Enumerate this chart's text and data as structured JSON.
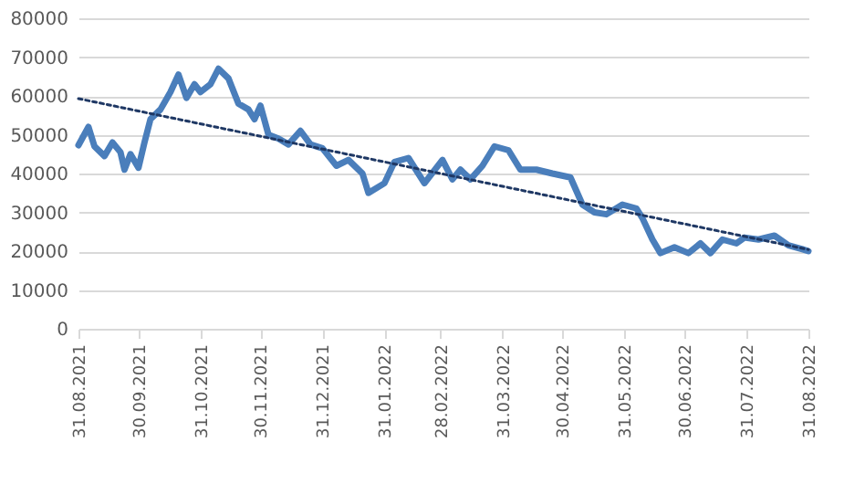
{
  "chart_data": {
    "type": "line",
    "x": [
      "2021-08-31",
      "2021-09-05",
      "2021-09-08",
      "2021-09-13",
      "2021-09-17",
      "2021-09-21",
      "2021-09-23",
      "2021-09-26",
      "2021-09-30",
      "2021-10-03",
      "2021-10-06",
      "2021-10-11",
      "2021-10-16",
      "2021-10-20",
      "2021-10-24",
      "2021-10-28",
      "2021-10-31",
      "2021-11-05",
      "2021-11-09",
      "2021-11-14",
      "2021-11-19",
      "2021-11-24",
      "2021-11-27",
      "2021-11-30",
      "2021-12-04",
      "2021-12-09",
      "2021-12-14",
      "2021-12-20",
      "2021-12-25",
      "2021-12-31",
      "2022-01-07",
      "2022-01-13",
      "2022-01-20",
      "2022-01-23",
      "2022-01-31",
      "2022-02-05",
      "2022-02-12",
      "2022-02-20",
      "2022-03-01",
      "2022-03-06",
      "2022-03-10",
      "2022-03-15",
      "2022-03-21",
      "2022-03-27",
      "2022-04-03",
      "2022-04-09",
      "2022-04-17",
      "2022-04-25",
      "2022-05-04",
      "2022-05-10",
      "2022-05-16",
      "2022-05-22",
      "2022-05-30",
      "2022-06-06",
      "2022-06-09",
      "2022-06-14",
      "2022-06-18",
      "2022-06-25",
      "2022-07-02",
      "2022-07-08",
      "2022-07-13",
      "2022-07-19",
      "2022-07-26",
      "2022-07-30",
      "2022-08-06",
      "2022-08-14",
      "2022-08-21",
      "2022-08-28",
      "2022-08-31"
    ],
    "series": [
      {
        "color": "#4a7ebb",
        "values": [
          47300,
          52000,
          47000,
          44500,
          48000,
          45500,
          41000,
          45000,
          41500,
          48000,
          54000,
          56500,
          61000,
          65500,
          59500,
          63000,
          61000,
          63000,
          67000,
          64500,
          58000,
          56500,
          54000,
          57500,
          50000,
          49000,
          47500,
          51000,
          47500,
          46500,
          42000,
          43500,
          40000,
          35000,
          37500,
          43000,
          44000,
          37500,
          43500,
          38500,
          41000,
          38500,
          42000,
          47000,
          46000,
          41000,
          41000,
          40000,
          39000,
          32000,
          30000,
          29500,
          32000,
          31000,
          28500,
          23000,
          19500,
          21000,
          19500,
          22000,
          19500,
          23000,
          22000,
          23500,
          23000,
          24000,
          21500,
          20500,
          20000
        ]
      },
      {
        "type": "line",
        "color": "#1f3864",
        "line_style": "dotted",
        "x": [
          "2021-08-31",
          "2022-08-31"
        ],
        "values": [
          59300,
          20400
        ]
      }
    ],
    "xlim": [
      "2021-08-31",
      "2022-08-31"
    ],
    "xticks": [
      {
        "value": "2021-08-31",
        "label": "31.08.2021"
      },
      {
        "value": "2021-09-30",
        "label": "30.09.2021"
      },
      {
        "value": "2021-10-31",
        "label": "31.10.2021"
      },
      {
        "value": "2021-11-30",
        "label": "30.11.2021"
      },
      {
        "value": "2021-12-31",
        "label": "31.12.2021"
      },
      {
        "value": "2022-01-31",
        "label": "31.01.2022"
      },
      {
        "value": "2022-02-28",
        "label": "28.02.2022"
      },
      {
        "value": "2022-03-31",
        "label": "31.03.2022"
      },
      {
        "value": "2022-04-30",
        "label": "30.04.2022"
      },
      {
        "value": "2022-05-31",
        "label": "31.05.2022"
      },
      {
        "value": "2022-06-30",
        "label": "30.06.2022"
      },
      {
        "value": "2022-07-31",
        "label": "31.07.2022"
      },
      {
        "value": "2022-08-31",
        "label": "31.08.2022"
      }
    ],
    "ylim": [
      0,
      80000
    ],
    "yticks": [
      0,
      10000,
      20000,
      30000,
      40000,
      50000,
      60000,
      70000,
      80000
    ],
    "grid": "y",
    "marker": "none",
    "line_style": "solid"
  }
}
